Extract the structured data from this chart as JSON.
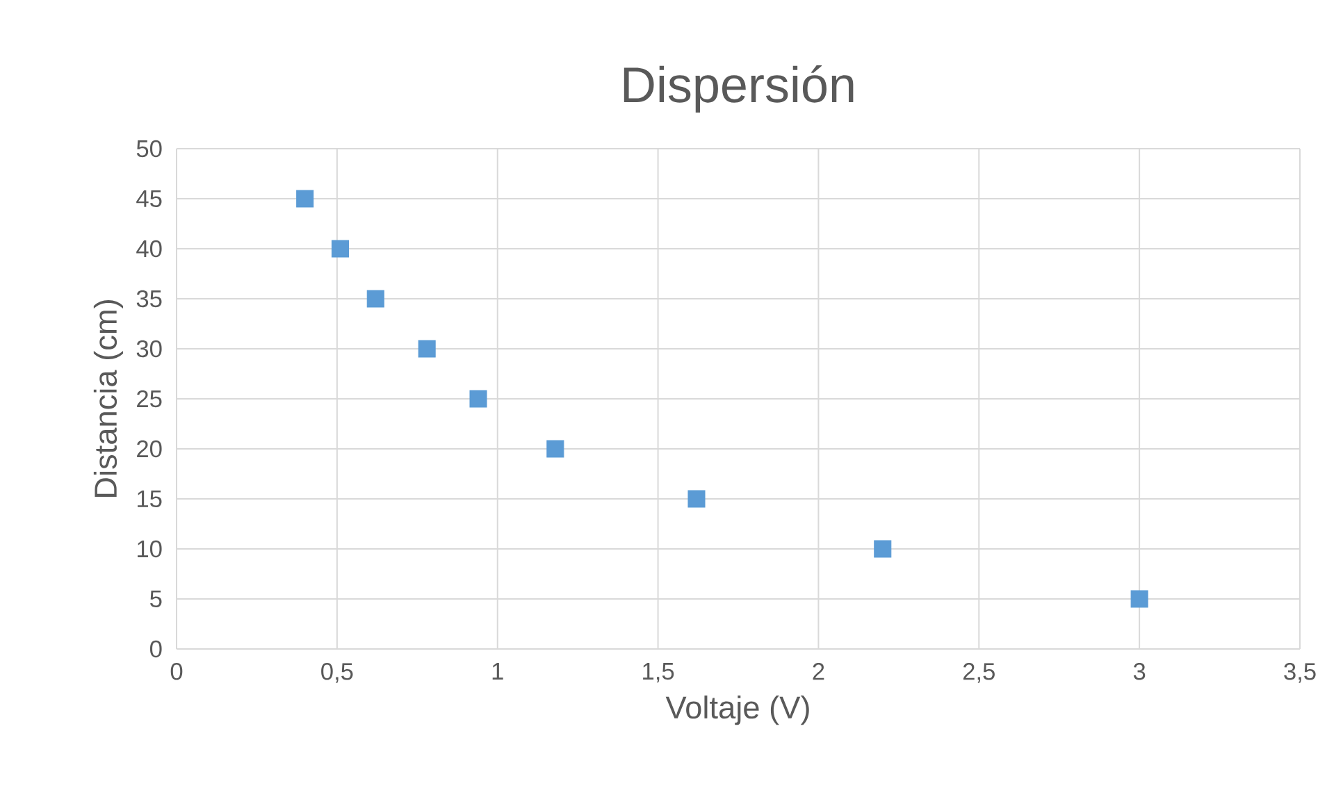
{
  "chart_data": {
    "type": "scatter",
    "title": "Dispersión",
    "xlabel": "Voltaje (V)",
    "ylabel": "Distancia (cm)",
    "x": [
      0.4,
      0.51,
      0.62,
      0.78,
      0.94,
      1.18,
      1.62,
      2.2,
      3.0
    ],
    "series": [
      {
        "color": "#5b9bd5",
        "values": [
          45,
          40,
          35,
          30,
          25,
          20,
          15,
          10,
          5
        ]
      }
    ],
    "xlim": [
      0,
      3.5
    ],
    "xticks": [
      0,
      {
        "value": 0.5,
        "label": "0,5"
      },
      1,
      {
        "value": 1.5,
        "label": "1,5"
      },
      2,
      {
        "value": 2.5,
        "label": "2,5"
      },
      3,
      {
        "value": 3.5,
        "label": "3,5"
      }
    ],
    "ylim": [
      0,
      50
    ],
    "yticks": [
      0,
      5,
      10,
      15,
      20,
      25,
      30,
      35,
      40,
      45,
      50
    ],
    "grid": true,
    "marker": "square"
  }
}
